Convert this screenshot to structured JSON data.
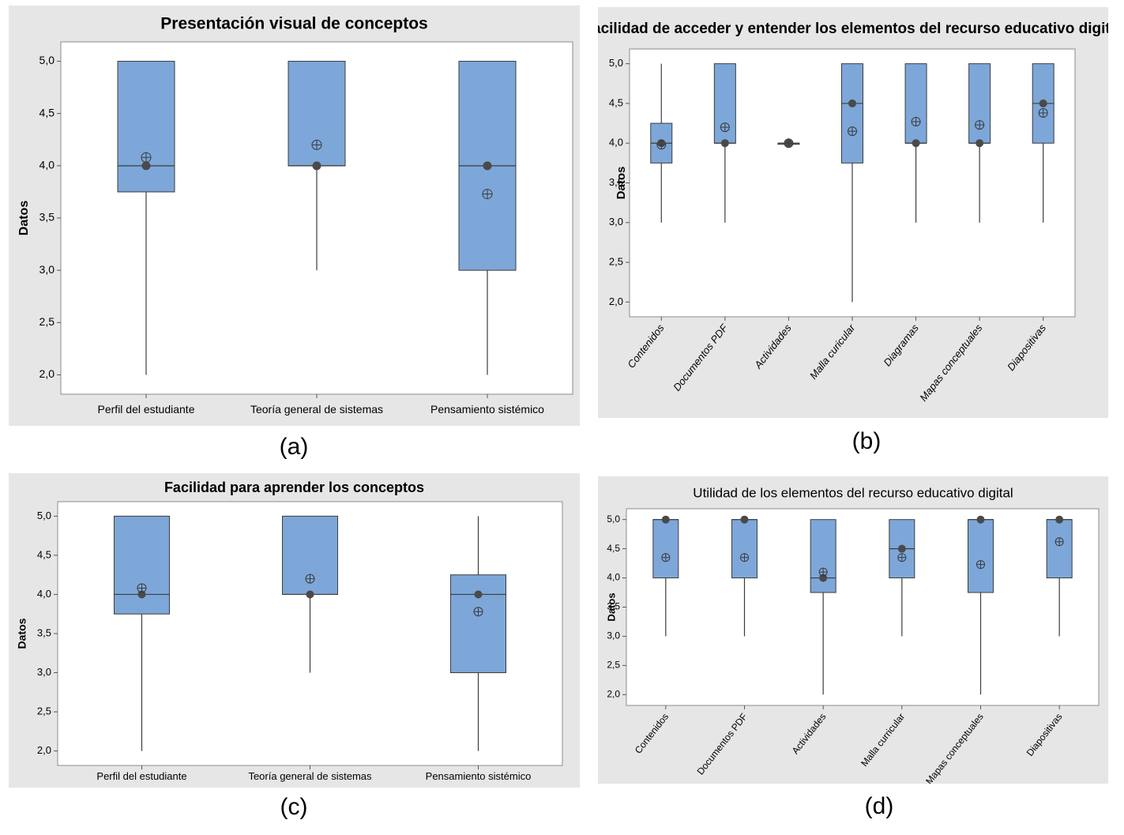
{
  "chart_data": [
    {
      "id": "a",
      "type": "boxplot",
      "panel_label": "(a)",
      "title": "Presentación visual de conceptos",
      "xlabel": "",
      "ylabel": "Datos",
      "ylim": [
        2.0,
        5.0
      ],
      "yticks": [
        "2,0",
        "2,5",
        "3,0",
        "3,5",
        "4,0",
        "4,5",
        "5,0"
      ],
      "yticks_values": [
        2.0,
        2.5,
        3.0,
        3.5,
        4.0,
        4.5,
        5.0
      ],
      "categories": [
        "Perfil del estudiante",
        "Teoría general de sistemas",
        "Pensamiento sistémico"
      ],
      "series": [
        {
          "name": "Perfil del estudiante",
          "min": 2.0,
          "q1": 3.75,
          "median": 4.0,
          "q3": 5.0,
          "max": 5.0,
          "mean": 4.08
        },
        {
          "name": "Teoría general de sistemas",
          "min": 3.0,
          "q1": 4.0,
          "median": 4.0,
          "q3": 5.0,
          "max": 5.0,
          "mean": 4.2
        },
        {
          "name": "Pensamiento sistémico",
          "min": 2.0,
          "q1": 3.0,
          "median": 4.0,
          "q3": 5.0,
          "max": 5.0,
          "mean": 3.73
        }
      ]
    },
    {
      "id": "b",
      "type": "boxplot",
      "panel_label": "(b)",
      "title": "Facilidad de acceder y entender los elementos del recurso educativo digital",
      "xlabel": "",
      "ylabel": "Datos",
      "ylim": [
        2.0,
        5.0
      ],
      "yticks": [
        "2,0",
        "2,5",
        "3,0",
        "3,5",
        "4,0",
        "4,5",
        "5,0"
      ],
      "yticks_values": [
        2.0,
        2.5,
        3.0,
        3.5,
        4.0,
        4.5,
        5.0
      ],
      "categories": [
        "Contenidos",
        "Documentos PDF",
        "Actividades",
        "Malla curicular",
        "Diagramas",
        "Mapas conceptuales",
        "Diapositivas"
      ],
      "series": [
        {
          "name": "Contenidos",
          "min": 3.0,
          "q1": 3.75,
          "median": 4.0,
          "q3": 4.25,
          "max": 5.0,
          "mean": 3.98
        },
        {
          "name": "Documentos PDF",
          "min": 3.0,
          "q1": 4.0,
          "median": 4.0,
          "q3": 5.0,
          "max": 5.0,
          "mean": 4.2
        },
        {
          "name": "Actividades",
          "min": 4.0,
          "q1": 4.0,
          "median": 4.0,
          "q3": 4.0,
          "max": 4.0,
          "mean": 4.0
        },
        {
          "name": "Malla curicular",
          "min": 2.0,
          "q1": 3.75,
          "median": 4.5,
          "q3": 5.0,
          "max": 5.0,
          "mean": 4.15
        },
        {
          "name": "Diagramas",
          "min": 3.0,
          "q1": 4.0,
          "median": 4.0,
          "q3": 5.0,
          "max": 5.0,
          "mean": 4.27
        },
        {
          "name": "Mapas conceptuales",
          "min": 3.0,
          "q1": 4.0,
          "median": 4.0,
          "q3": 5.0,
          "max": 5.0,
          "mean": 4.23
        },
        {
          "name": "Diapositivas",
          "min": 3.0,
          "q1": 4.0,
          "median": 4.5,
          "q3": 5.0,
          "max": 5.0,
          "mean": 4.38
        }
      ]
    },
    {
      "id": "c",
      "type": "boxplot",
      "panel_label": "(c)",
      "title": "Facilidad para aprender los conceptos",
      "xlabel": "",
      "ylabel": "Datos",
      "ylim": [
        2.0,
        5.0
      ],
      "yticks": [
        "2,0",
        "2,5",
        "3,0",
        "3,5",
        "4,0",
        "4,5",
        "5,0"
      ],
      "yticks_values": [
        2.0,
        2.5,
        3.0,
        3.5,
        4.0,
        4.5,
        5.0
      ],
      "categories": [
        "Perfil del estudiante",
        "Teoría general de sistemas",
        "Pensamiento sistémico"
      ],
      "series": [
        {
          "name": "Perfil del estudiante",
          "min": 2.0,
          "q1": 3.75,
          "median": 4.0,
          "q3": 5.0,
          "max": 5.0,
          "mean": 4.08
        },
        {
          "name": "Teoría general de sistemas",
          "min": 3.0,
          "q1": 4.0,
          "median": 4.0,
          "q3": 5.0,
          "max": 5.0,
          "mean": 4.2
        },
        {
          "name": "Pensamiento sistémico",
          "min": 2.0,
          "q1": 3.0,
          "median": 4.0,
          "q3": 4.25,
          "max": 5.0,
          "mean": 3.78
        }
      ]
    },
    {
      "id": "d",
      "type": "boxplot",
      "panel_label": "(d)",
      "title": "Utilidad de los elementos del recurso educativo digital",
      "xlabel": "",
      "ylabel": "Datos",
      "ylim": [
        2.0,
        5.0
      ],
      "yticks": [
        "2,0",
        "2,5",
        "3,0",
        "3,5",
        "4,0",
        "4,5",
        "5,0"
      ],
      "yticks_values": [
        2.0,
        2.5,
        3.0,
        3.5,
        4.0,
        4.5,
        5.0
      ],
      "categories": [
        "Contenidos",
        "Documentos PDF",
        "Actividades",
        "Malla curricular",
        "Mapas conceptuales",
        "Diapositivas"
      ],
      "series": [
        {
          "name": "Contenidos",
          "min": 3.0,
          "q1": 4.0,
          "median": 5.0,
          "q3": 5.0,
          "max": 5.0,
          "mean": 4.35
        },
        {
          "name": "Documentos PDF",
          "min": 3.0,
          "q1": 4.0,
          "median": 5.0,
          "q3": 5.0,
          "max": 5.0,
          "mean": 4.35
        },
        {
          "name": "Actividades",
          "min": 2.0,
          "q1": 3.75,
          "median": 4.0,
          "q3": 5.0,
          "max": 5.0,
          "mean": 4.1
        },
        {
          "name": "Malla curricular",
          "min": 3.0,
          "q1": 4.0,
          "median": 4.5,
          "q3": 5.0,
          "max": 5.0,
          "mean": 4.35
        },
        {
          "name": "Mapas conceptuales",
          "min": 2.0,
          "q1": 3.75,
          "median": 5.0,
          "q3": 5.0,
          "max": 5.0,
          "mean": 4.23
        },
        {
          "name": "Diapositivas",
          "min": 3.0,
          "q1": 4.0,
          "median": 5.0,
          "q3": 5.0,
          "max": 5.0,
          "mean": 4.62
        }
      ]
    }
  ],
  "colors": {
    "panel_bg": "#e6e6e6",
    "plot_bg": "#ffffff",
    "box_fill": "#7da7d9",
    "box_edge": "#3c3c3c",
    "whisker": "#3c3c3c",
    "median_dot": "#4a4a4a",
    "text": "#000000"
  }
}
